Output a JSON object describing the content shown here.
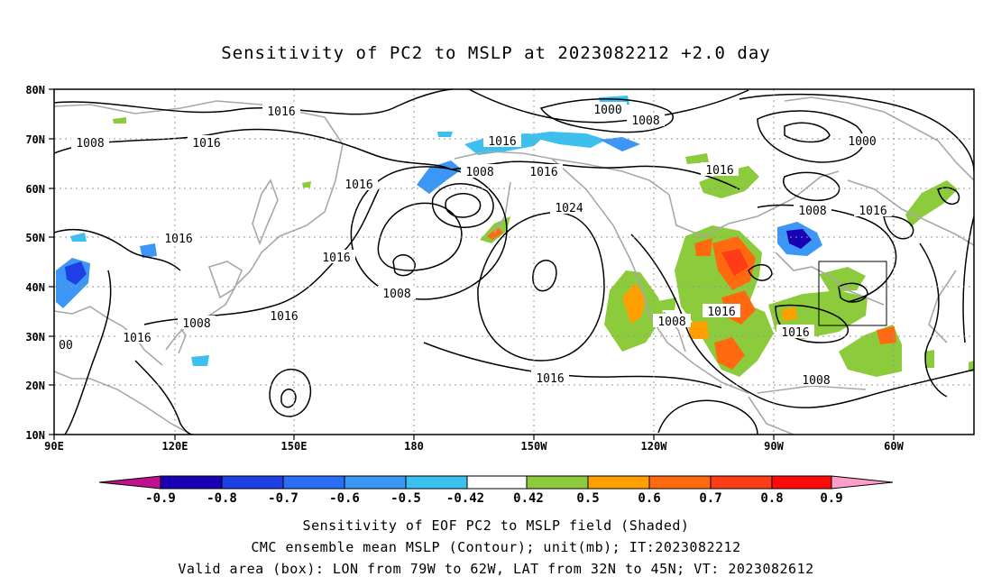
{
  "title": "Sensitivity of PC2 to MSLP at 2023082212 +2.0 day",
  "lat_labels": [
    "80N",
    "70N",
    "60N",
    "50N",
    "40N",
    "30N",
    "20N",
    "10N"
  ],
  "lon_labels": [
    "90E",
    "120E",
    "150E",
    "180",
    "150W",
    "120W",
    "90W",
    "60W"
  ],
  "contour_labels": [
    "1016",
    "1008",
    "1016",
    "1016",
    "1016",
    "1016",
    "1016",
    "1016",
    "1008",
    "1016",
    "1000",
    "1008",
    "1016",
    "1008",
    "1024",
    "1016",
    "1008",
    "1016",
    "1016",
    "1016",
    "1008",
    "1000",
    "1008",
    "1016",
    "1008",
    "00"
  ],
  "colorbar": {
    "labels": [
      "-0.9",
      "-0.8",
      "-0.7",
      "-0.6",
      "-0.5",
      "-0.42",
      "0.42",
      "0.5",
      "0.6",
      "0.7",
      "0.8",
      "0.9"
    ],
    "colors": [
      "#c0108c",
      "#1a00b4",
      "#1e3ee6",
      "#2a6ef5",
      "#3b96f5",
      "#3cc0ef",
      "#ffffff",
      "#8ccc3c",
      "#ffa000",
      "#ff6a10",
      "#ff3c18",
      "#ff0a0a",
      "#ff9ec8"
    ]
  },
  "valid_box": {
    "lon_west": "79W",
    "lon_east": "62W",
    "lat_south": "32N",
    "lat_north": "45N"
  },
  "footer": {
    "line1": "Sensitivity of EOF PC2 to MSLP field (Shaded)",
    "line2": "CMC ensemble mean MSLP (Contour); unit(mb); IT:2023082212",
    "line3": "Valid area (box): LON from 79W to 62W, LAT from 32N to 45N; VT: 2023082612"
  }
}
